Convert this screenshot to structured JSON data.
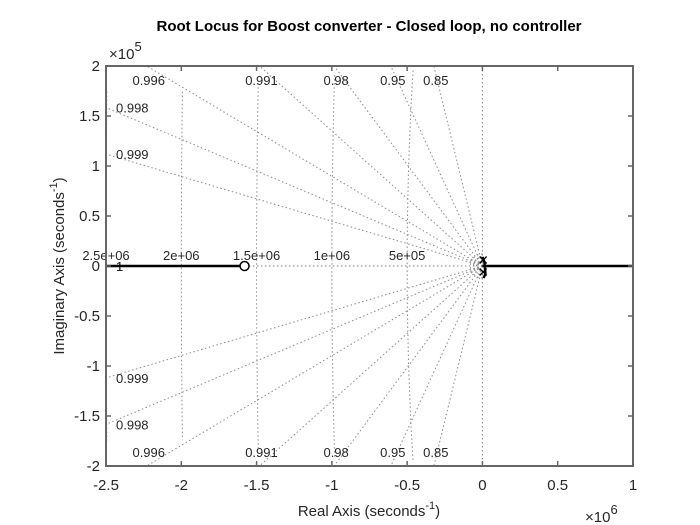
{
  "chart_data": {
    "type": "scatter",
    "title": "Root Locus for Boost converter - Closed loop, no controller",
    "xlabel": "Real Axis (seconds",
    "ylabel": "Imaginary Axis (seconds",
    "label_superscript": "-1",
    "label_close": ")",
    "x_multiplier": "×10",
    "x_multiplier_exp": "6",
    "y_multiplier": "×10",
    "y_multiplier_exp": "5",
    "xlim": [
      -2.5,
      1
    ],
    "ylim": [
      -2,
      2
    ],
    "x_ticks": [
      -2.5,
      -2,
      -1.5,
      -1,
      -0.5,
      0,
      0.5,
      1
    ],
    "x_tick_labels": [
      "-2.5",
      "-2",
      "-1.5",
      "-1",
      "-0.5",
      "0",
      "0.5",
      "1"
    ],
    "y_ticks": [
      -2,
      -1.5,
      -1,
      -0.5,
      0,
      0.5,
      1,
      1.5,
      2
    ],
    "y_tick_labels": [
      "-2",
      "-1.5",
      "-1",
      "-0.5",
      "0",
      "0.5",
      "1",
      "1.5",
      "2"
    ],
    "grid": true,
    "damping_lines": [
      {
        "zeta": 0.85,
        "label": "0.85"
      },
      {
        "zeta": 0.95,
        "label": "0.95"
      },
      {
        "zeta": 0.98,
        "label": "0.98"
      },
      {
        "zeta": 0.991,
        "label": "0.991"
      },
      {
        "zeta": 0.996,
        "label": "0.996"
      },
      {
        "zeta": 0.998,
        "label": "0.998"
      },
      {
        "zeta": 0.999,
        "label": "0.999"
      },
      {
        "zeta": 1,
        "label": "1"
      }
    ],
    "natural_frequencies": [
      {
        "wn": 500000,
        "label": "5e+05"
      },
      {
        "wn": 1000000,
        "label": "1e+06"
      },
      {
        "wn": 1500000,
        "label": "1.5e+06"
      },
      {
        "wn": 2000000,
        "label": "2e+06"
      },
      {
        "wn": 2500000,
        "label": "2.5e+06"
      }
    ],
    "zeros": [
      {
        "real": -1580000,
        "imag": 0
      }
    ],
    "poles": [
      {
        "real": 5000,
        "imag": 6000
      },
      {
        "real": 5000,
        "imag": -6000
      }
    ],
    "locus_branches": [
      {
        "name": "real-axis-left",
        "x": [
          -2500000,
          -1580000
        ],
        "y": [
          0,
          0
        ]
      },
      {
        "name": "real-axis-right",
        "x": [
          0,
          1000000
        ],
        "y": [
          0,
          0
        ]
      }
    ]
  }
}
